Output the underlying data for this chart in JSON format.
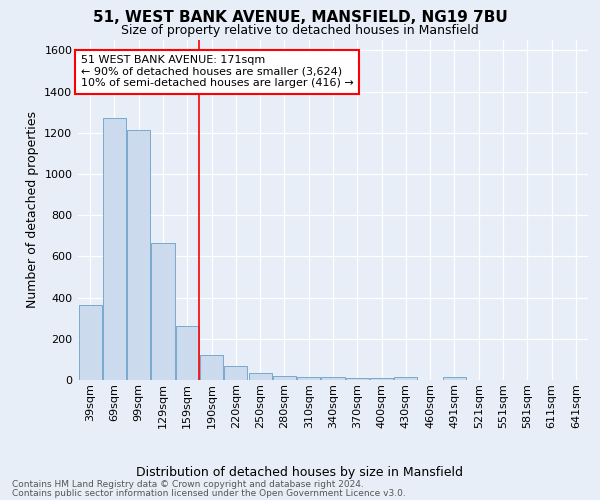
{
  "title": "51, WEST BANK AVENUE, MANSFIELD, NG19 7BU",
  "subtitle": "Size of property relative to detached houses in Mansfield",
  "xlabel": "Distribution of detached houses by size in Mansfield",
  "ylabel": "Number of detached properties",
  "footnote1": "Contains HM Land Registry data © Crown copyright and database right 2024.",
  "footnote2": "Contains public sector information licensed under the Open Government Licence v3.0.",
  "annotation_line1": "51 WEST BANK AVENUE: 171sqm",
  "annotation_line2": "← 90% of detached houses are smaller (3,624)",
  "annotation_line3": "10% of semi-detached houses are larger (416) →",
  "bar_labels": [
    "39sqm",
    "69sqm",
    "99sqm",
    "129sqm",
    "159sqm",
    "190sqm",
    "220sqm",
    "250sqm",
    "280sqm",
    "310sqm",
    "340sqm",
    "370sqm",
    "400sqm",
    "430sqm",
    "460sqm",
    "491sqm",
    "521sqm",
    "551sqm",
    "581sqm",
    "611sqm",
    "641sqm"
  ],
  "bar_values": [
    365,
    1270,
    1215,
    665,
    260,
    120,
    70,
    35,
    20,
    15,
    15,
    10,
    10,
    15,
    0,
    15,
    0,
    0,
    0,
    0,
    0
  ],
  "bar_color": "#ccdaed",
  "bar_edge_color": "#6b9ec8",
  "red_line_x": 4.5,
  "ylim": [
    0,
    1650
  ],
  "yticks": [
    0,
    200,
    400,
    600,
    800,
    1000,
    1200,
    1400,
    1600
  ],
  "annotation_box_color": "white",
  "annotation_box_edge": "red",
  "bg_color": "#e8eef7",
  "grid_color": "white",
  "title_fontsize": 11,
  "subtitle_fontsize": 9,
  "ylabel_fontsize": 9,
  "xlabel_fontsize": 9,
  "tick_fontsize": 8,
  "annot_fontsize": 8,
  "footnote_fontsize": 6.5
}
